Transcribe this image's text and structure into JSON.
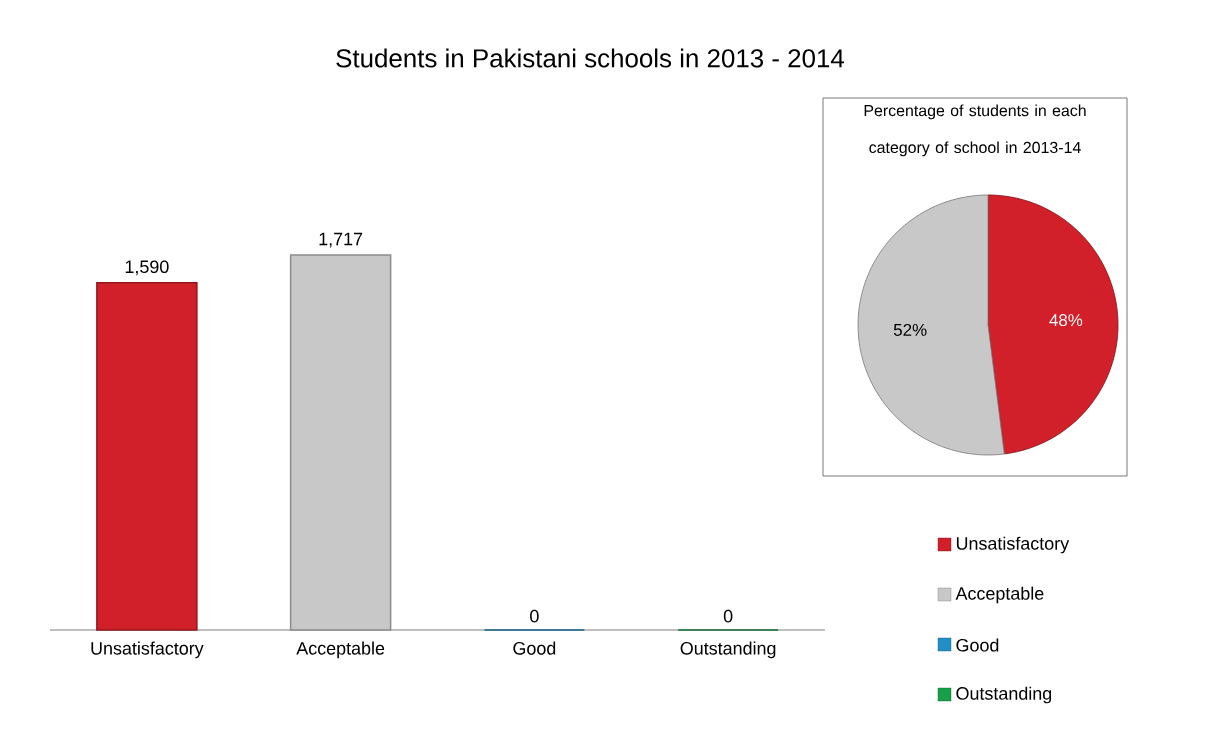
{
  "chart_data": [
    {
      "type": "bar",
      "title": "Students in Pakistani schools in 2013 - 2014",
      "categories": [
        "Unsatisfactory",
        "Acceptable",
        "Good",
        "Outstanding"
      ],
      "values": [
        1590,
        1717,
        0,
        0
      ],
      "colors": [
        "#d2202a",
        "#c8c8c8",
        "#1f8fc6",
        "#16a04a"
      ],
      "value_labels": [
        "1,590",
        "1,717",
        "0",
        "0"
      ]
    },
    {
      "type": "pie",
      "title": "Percentage of students in each category of school in 2013-14",
      "categories": [
        "Unsatisfactory",
        "Acceptable",
        "Good",
        "Outstanding"
      ],
      "values": [
        48,
        52,
        0,
        0
      ],
      "colors": [
        "#d2202a",
        "#c8c8c8",
        "#1f8fc6",
        "#16a04a"
      ],
      "value_labels": [
        "48%",
        "52%",
        null,
        null
      ],
      "legend": "right"
    }
  ]
}
